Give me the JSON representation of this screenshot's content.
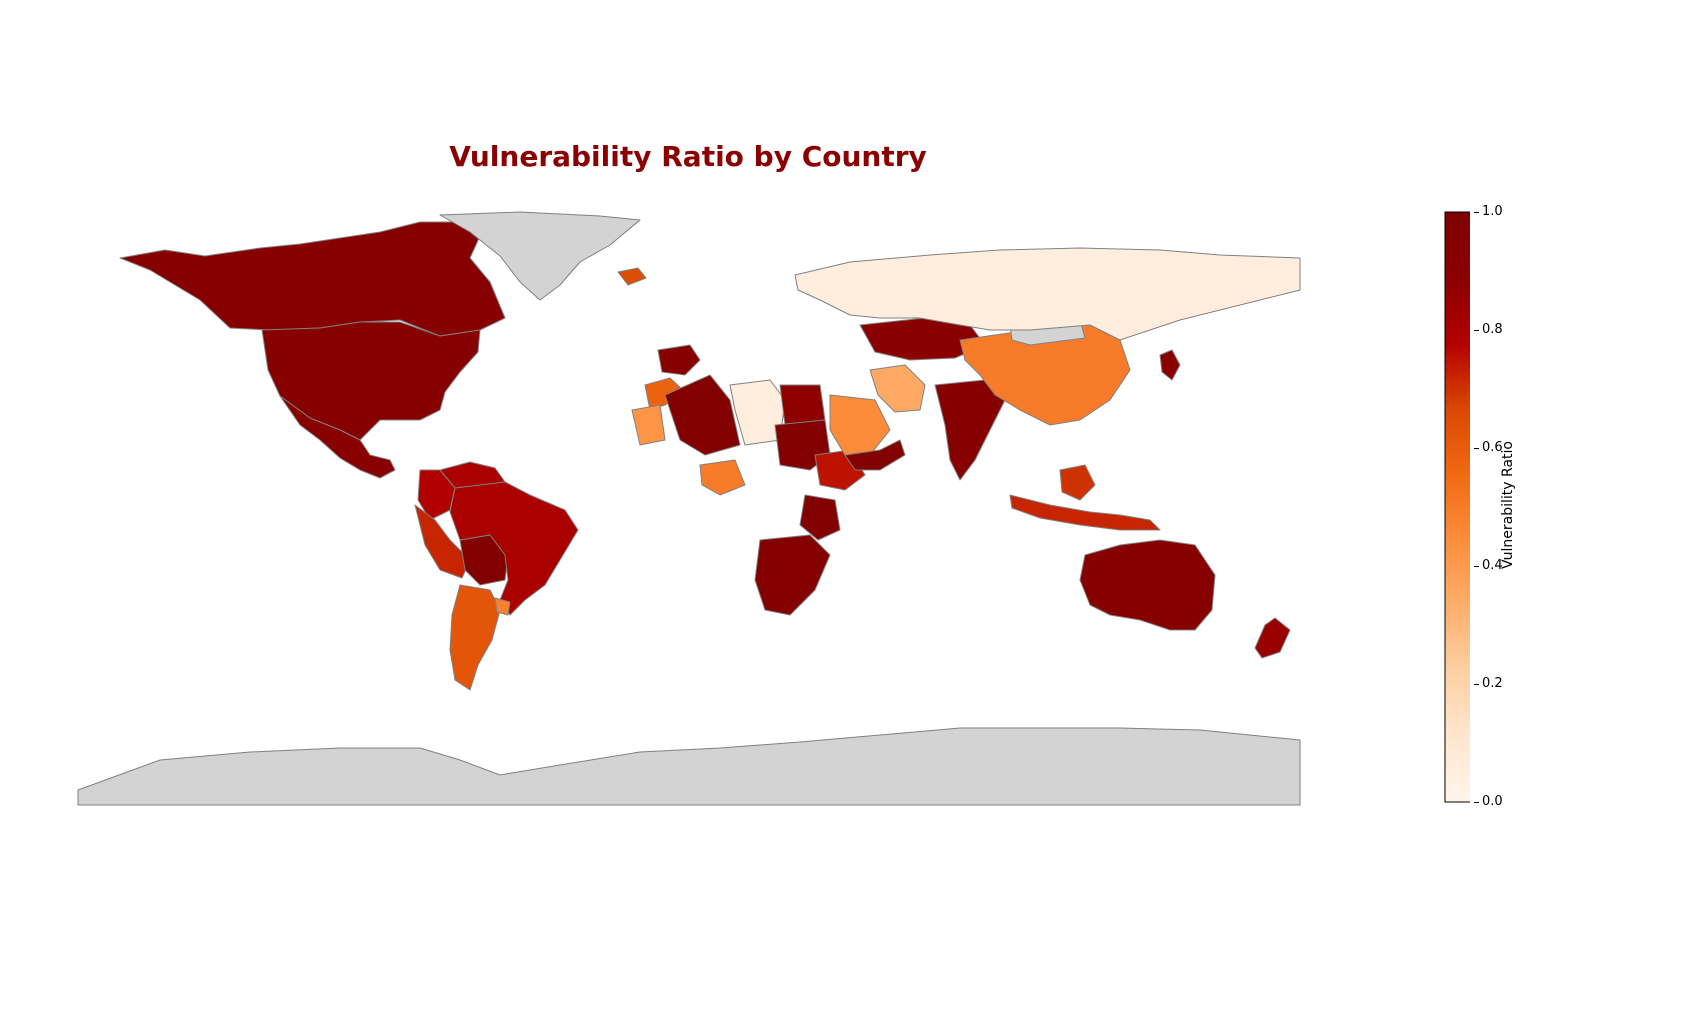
{
  "title": "Vulnerability Ratio by Country",
  "colorbar": {
    "label": "Vulnerability Ratio",
    "min": 0.0,
    "max": 1.0,
    "ticks": [
      "0.0",
      "0.2",
      "0.4",
      "0.6",
      "0.8",
      "1.0"
    ],
    "colormap": [
      "#fff5eb",
      "#fee6ce",
      "#fdd0a2",
      "#fdae6b",
      "#fd8d3c",
      "#f16913",
      "#d94801",
      "#b30000",
      "#8b0000",
      "#7f0000"
    ],
    "no_data_color": "#d3d3d3"
  },
  "chart_data": {
    "type": "choropleth",
    "value_field": "Vulnerability Ratio",
    "scale": [
      0,
      1
    ],
    "regions": [
      {
        "name": "Canada",
        "value": 0.93
      },
      {
        "name": "United States",
        "value": 0.93
      },
      {
        "name": "Mexico",
        "value": 0.92
      },
      {
        "name": "Greenland",
        "value": null
      },
      {
        "name": "Iceland",
        "value": 0.65
      },
      {
        "name": "Venezuela",
        "value": 0.8
      },
      {
        "name": "Colombia",
        "value": 0.78
      },
      {
        "name": "Peru",
        "value": 0.72
      },
      {
        "name": "Bolivia",
        "value": 0.97
      },
      {
        "name": "Brazil",
        "value": 0.8
      },
      {
        "name": "Argentina",
        "value": 0.62
      },
      {
        "name": "Uruguay",
        "value": 0.48
      },
      {
        "name": "Spain",
        "value": 0.93
      },
      {
        "name": "Morocco",
        "value": 0.58
      },
      {
        "name": "Western Sahara",
        "value": 0.42
      },
      {
        "name": "Algeria",
        "value": 0.97
      },
      {
        "name": "Libya",
        "value": 0.05
      },
      {
        "name": "Egypt",
        "value": 0.88
      },
      {
        "name": "Sudan",
        "value": 0.97
      },
      {
        "name": "Ethiopia",
        "value": 0.75
      },
      {
        "name": "Nigeria",
        "value": 0.5
      },
      {
        "name": "Tanzania",
        "value": 0.97
      },
      {
        "name": "Southern Africa",
        "value": 0.95
      },
      {
        "name": "Saudi Arabia",
        "value": 0.45
      },
      {
        "name": "Iran",
        "value": 0.35
      },
      {
        "name": "Yemen/Oman",
        "value": 0.97
      },
      {
        "name": "Kazakhstan",
        "value": 0.9
      },
      {
        "name": "India",
        "value": 0.93
      },
      {
        "name": "China",
        "value": 0.5
      },
      {
        "name": "Mongolia",
        "value": null
      },
      {
        "name": "Russia",
        "value": 0.05
      },
      {
        "name": "Japan",
        "value": 0.9
      },
      {
        "name": "Indonesia",
        "value": 0.72
      },
      {
        "name": "Borneo",
        "value": 0.7
      },
      {
        "name": "Australia",
        "value": 0.93
      },
      {
        "name": "New Zealand",
        "value": 0.85
      },
      {
        "name": "Antarctica",
        "value": null
      }
    ]
  }
}
